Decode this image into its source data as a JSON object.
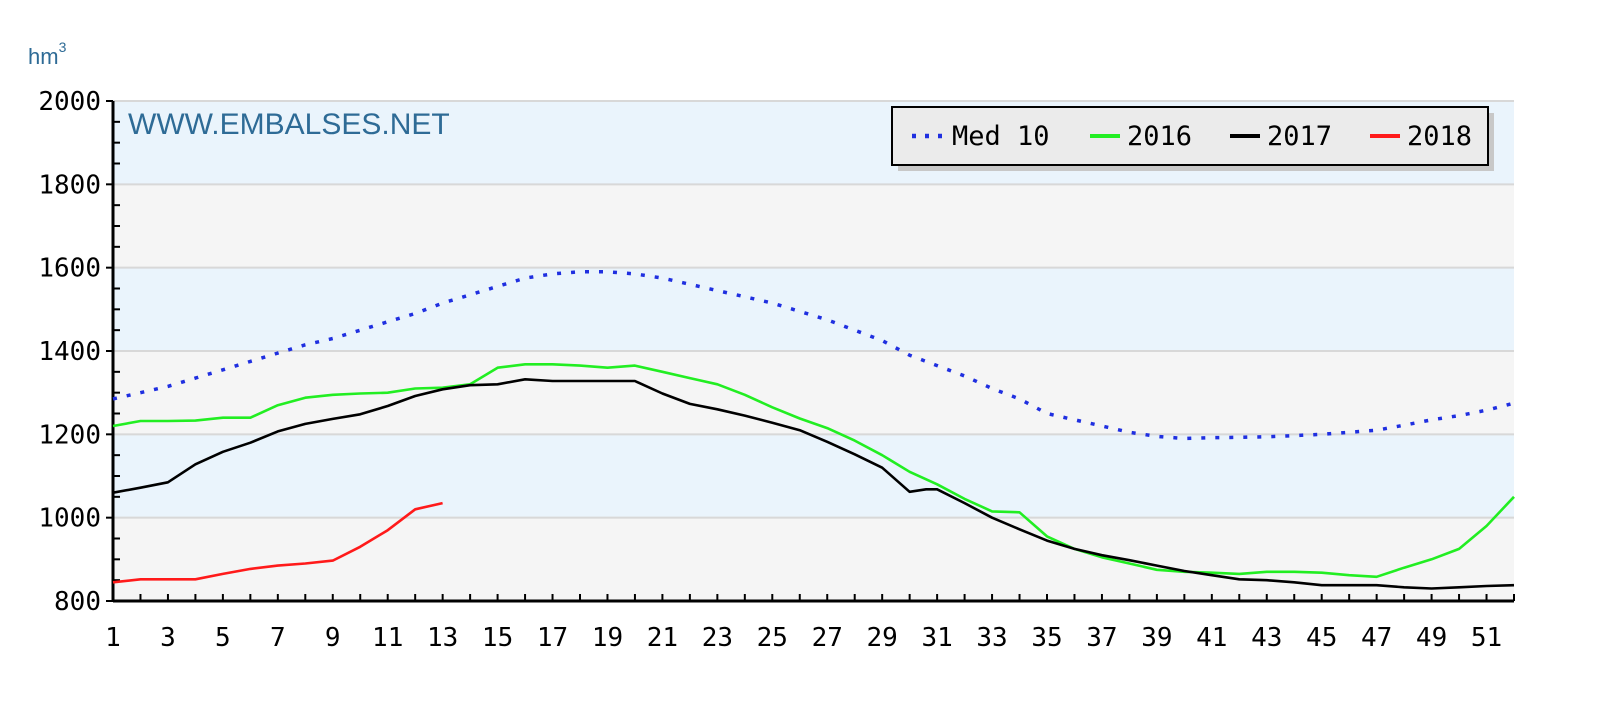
{
  "chart_data": {
    "type": "line",
    "unit_label": "hm",
    "unit_superscript": "3",
    "watermark": "WWW.EMBALSES.NET",
    "ylim": [
      800,
      2000
    ],
    "yticks": [
      800,
      1000,
      1200,
      1400,
      1600,
      1800,
      2000
    ],
    "xlim": [
      1,
      52
    ],
    "xticks": [
      1,
      3,
      5,
      7,
      9,
      11,
      13,
      15,
      17,
      19,
      21,
      23,
      25,
      27,
      29,
      31,
      33,
      35,
      37,
      39,
      41,
      43,
      45,
      47,
      49,
      51
    ],
    "grid": true,
    "legend_position": "top-right",
    "colors": {
      "band_a": "#eaf4fc",
      "band_b": "#f5f5f5",
      "grid": "#d8d8d8",
      "legend_bg": "#ebebeb"
    },
    "series": [
      {
        "name": "Med 10",
        "color": "#1f2fe0",
        "style": "dotted",
        "x": [
          1,
          2,
          3,
          4,
          5,
          6,
          7,
          8,
          9,
          10,
          11,
          12,
          13,
          14,
          15,
          16,
          17,
          18,
          19,
          20,
          21,
          22,
          23,
          24,
          25,
          26,
          27,
          28,
          29,
          30,
          31,
          32,
          33,
          34,
          35,
          36,
          37,
          38,
          39,
          40,
          41,
          42,
          43,
          44,
          45,
          46,
          47,
          48,
          49,
          50,
          51,
          52
        ],
        "y": [
          1285,
          1300,
          1315,
          1335,
          1355,
          1375,
          1395,
          1415,
          1430,
          1450,
          1470,
          1490,
          1515,
          1535,
          1555,
          1575,
          1585,
          1590,
          1590,
          1585,
          1575,
          1560,
          1545,
          1530,
          1515,
          1495,
          1475,
          1450,
          1425,
          1390,
          1365,
          1340,
          1310,
          1285,
          1250,
          1235,
          1220,
          1205,
          1195,
          1190,
          1192,
          1193,
          1194,
          1197,
          1200,
          1205,
          1210,
          1222,
          1235,
          1245,
          1258,
          1275
        ]
      },
      {
        "name": "2016",
        "color": "#22ee22",
        "style": "solid",
        "x": [
          1,
          2,
          3,
          4,
          5,
          6,
          7,
          8,
          9,
          10,
          11,
          12,
          13,
          14,
          15,
          16,
          17,
          18,
          19,
          20,
          21,
          22,
          23,
          24,
          25,
          26,
          27,
          28,
          29,
          30,
          31,
          32,
          33,
          34,
          35,
          36,
          37,
          38,
          39,
          40,
          41,
          42,
          43,
          44,
          45,
          46,
          47,
          48,
          49,
          50,
          51,
          52
        ],
        "y": [
          1220,
          1232,
          1232,
          1233,
          1240,
          1240,
          1270,
          1288,
          1295,
          1298,
          1300,
          1310,
          1312,
          1320,
          1360,
          1368,
          1368,
          1365,
          1360,
          1365,
          1350,
          1335,
          1320,
          1295,
          1265,
          1238,
          1215,
          1185,
          1150,
          1110,
          1080,
          1045,
          1015,
          1013,
          955,
          925,
          905,
          890,
          875,
          870,
          868,
          865,
          870,
          870,
          868,
          862,
          858,
          880,
          900,
          925,
          980,
          1050
        ]
      },
      {
        "name": "2017",
        "color": "#000000",
        "style": "solid",
        "x": [
          1,
          2,
          3,
          4,
          5,
          6,
          7,
          8,
          9,
          10,
          11,
          12,
          13,
          14,
          15,
          16,
          17,
          18,
          19,
          20,
          21,
          22,
          23,
          24,
          25,
          26,
          27,
          28,
          29,
          30,
          30.6,
          31,
          32,
          33,
          34,
          35,
          36,
          37,
          38,
          39,
          40,
          41,
          42,
          43,
          44,
          45,
          46,
          47,
          48,
          49,
          50,
          51,
          52
        ],
        "y": [
          1060,
          1072,
          1085,
          1128,
          1158,
          1180,
          1207,
          1225,
          1237,
          1248,
          1268,
          1292,
          1308,
          1318,
          1320,
          1332,
          1328,
          1328,
          1328,
          1328,
          1298,
          1273,
          1260,
          1245,
          1228,
          1210,
          1182,
          1152,
          1120,
          1062,
          1068,
          1068,
          1035,
          1000,
          972,
          945,
          925,
          910,
          898,
          885,
          872,
          862,
          852,
          850,
          845,
          838,
          838,
          838,
          833,
          830,
          833,
          836,
          838
        ]
      },
      {
        "name": "2018",
        "color": "#ff1a1a",
        "style": "solid",
        "x": [
          1,
          2,
          3,
          4,
          5,
          6,
          7,
          8,
          9,
          10,
          11,
          12,
          13
        ],
        "y": [
          845,
          852,
          852,
          852,
          865,
          877,
          885,
          890,
          897,
          930,
          970,
          1020,
          1035
        ]
      }
    ]
  }
}
